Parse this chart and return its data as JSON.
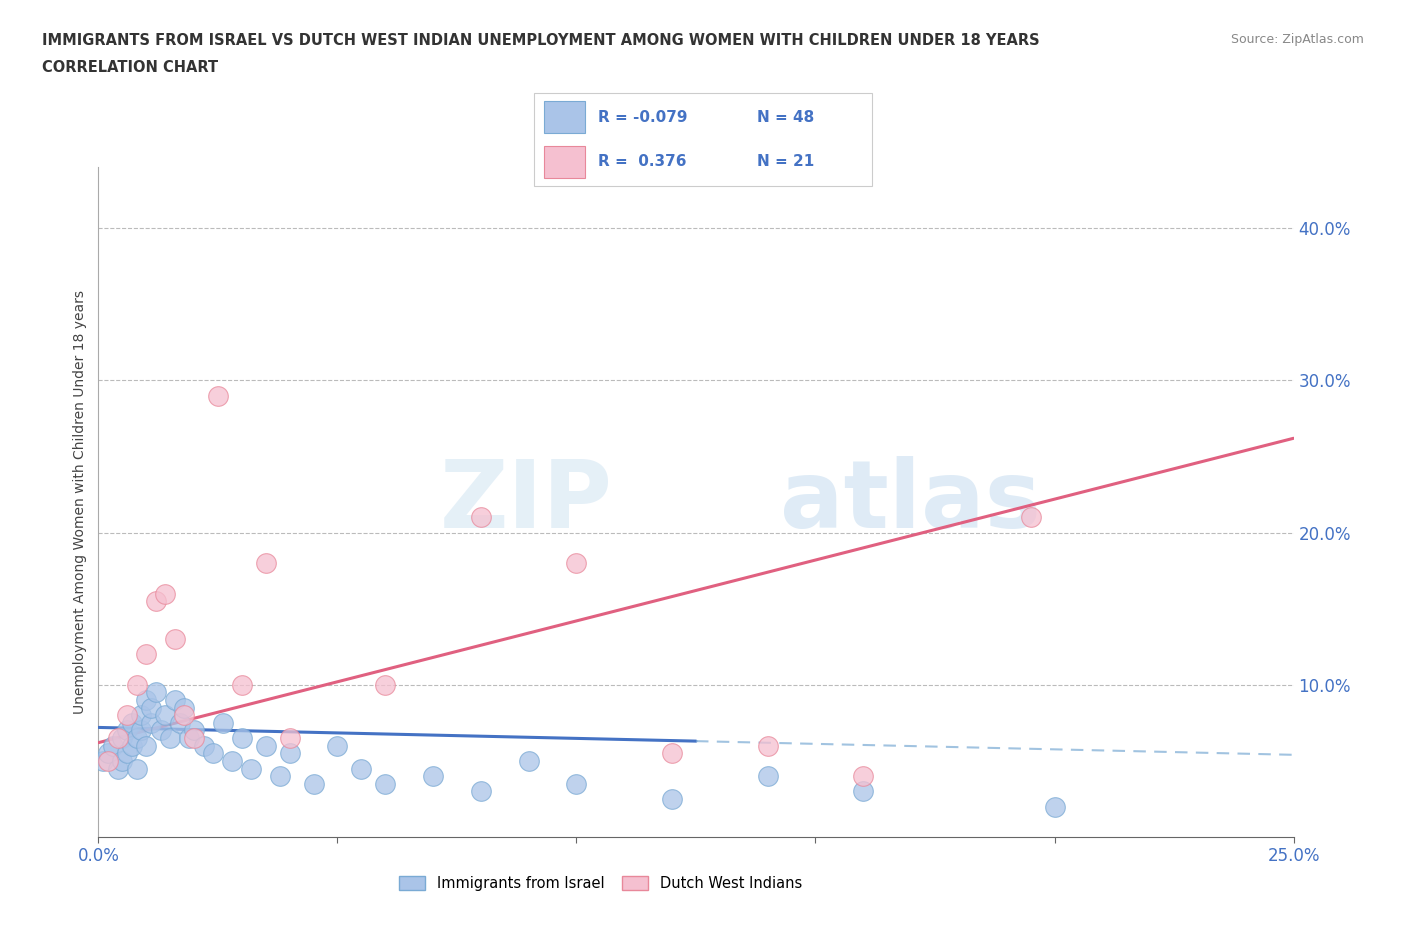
{
  "title_line1": "IMMIGRANTS FROM ISRAEL VS DUTCH WEST INDIAN UNEMPLOYMENT AMONG WOMEN WITH CHILDREN UNDER 18 YEARS",
  "title_line2": "CORRELATION CHART",
  "source_text": "Source: ZipAtlas.com",
  "ylabel": "Unemployment Among Women with Children Under 18 years",
  "xlim": [
    0.0,
    0.25
  ],
  "ylim": [
    0.0,
    0.44
  ],
  "israel_color": "#aac4e8",
  "israel_edge_color": "#7aaad4",
  "dwi_color": "#f5c0d0",
  "dwi_edge_color": "#e8889a",
  "trend_israel_solid_color": "#4472c4",
  "trend_israel_dash_color": "#7aaad4",
  "trend_dwi_color": "#e06080",
  "r_israel": -0.079,
  "n_israel": 48,
  "r_dwi": 0.376,
  "n_dwi": 21,
  "watermark_zip": "ZIP",
  "watermark_atlas": "atlas",
  "legend_label_israel": "Immigrants from Israel",
  "legend_label_dwi": "Dutch West Indians",
  "isr_x": [
    0.001,
    0.002,
    0.003,
    0.004,
    0.005,
    0.005,
    0.006,
    0.006,
    0.007,
    0.007,
    0.008,
    0.008,
    0.009,
    0.009,
    0.01,
    0.01,
    0.011,
    0.011,
    0.012,
    0.013,
    0.014,
    0.015,
    0.016,
    0.017,
    0.018,
    0.019,
    0.02,
    0.022,
    0.024,
    0.026,
    0.028,
    0.03,
    0.032,
    0.035,
    0.038,
    0.04,
    0.045,
    0.05,
    0.055,
    0.06,
    0.07,
    0.08,
    0.09,
    0.1,
    0.12,
    0.14,
    0.16,
    0.2
  ],
  "isr_y": [
    0.05,
    0.055,
    0.06,
    0.045,
    0.065,
    0.05,
    0.055,
    0.07,
    0.06,
    0.075,
    0.045,
    0.065,
    0.07,
    0.08,
    0.06,
    0.09,
    0.075,
    0.085,
    0.095,
    0.07,
    0.08,
    0.065,
    0.09,
    0.075,
    0.085,
    0.065,
    0.07,
    0.06,
    0.055,
    0.075,
    0.05,
    0.065,
    0.045,
    0.06,
    0.04,
    0.055,
    0.035,
    0.06,
    0.045,
    0.035,
    0.04,
    0.03,
    0.05,
    0.035,
    0.025,
    0.04,
    0.03,
    0.02
  ],
  "dwi_x": [
    0.002,
    0.004,
    0.006,
    0.008,
    0.01,
    0.012,
    0.014,
    0.016,
    0.018,
    0.02,
    0.025,
    0.03,
    0.035,
    0.04,
    0.06,
    0.08,
    0.1,
    0.12,
    0.14,
    0.16,
    0.195
  ],
  "dwi_y": [
    0.05,
    0.065,
    0.08,
    0.1,
    0.12,
    0.155,
    0.16,
    0.13,
    0.08,
    0.065,
    0.29,
    0.1,
    0.18,
    0.065,
    0.1,
    0.21,
    0.18,
    0.055,
    0.06,
    0.04,
    0.21
  ],
  "trend_isr_x0": 0.0,
  "trend_isr_x_solid_end": 0.125,
  "trend_isr_x1": 0.25,
  "trend_isr_y0": 0.072,
  "trend_isr_y_solid_end": 0.063,
  "trend_isr_y1": 0.054,
  "trend_dwi_x0": 0.0,
  "trend_dwi_x1": 0.25,
  "trend_dwi_y0": 0.062,
  "trend_dwi_y1": 0.262
}
